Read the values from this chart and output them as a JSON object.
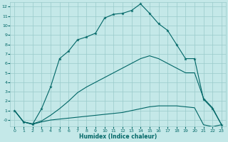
{
  "xlabel": "Humidex (Indice chaleur)",
  "bg_color": "#c4e8e8",
  "grid_color": "#9acaca",
  "line_color": "#006666",
  "xlim": [
    -0.5,
    23.5
  ],
  "ylim": [
    -0.7,
    12.5
  ],
  "xticks": [
    0,
    1,
    2,
    3,
    4,
    5,
    6,
    7,
    8,
    9,
    10,
    11,
    12,
    13,
    14,
    15,
    16,
    17,
    18,
    19,
    20,
    21,
    22,
    23
  ],
  "yticks": [
    0,
    1,
    2,
    3,
    4,
    5,
    6,
    7,
    8,
    9,
    10,
    11,
    12
  ],
  "ytick_labels": [
    "-0",
    "1",
    "2",
    "3",
    "4",
    "5",
    "6",
    "7",
    "8",
    "9",
    "10",
    "11",
    "12"
  ],
  "curve_x": [
    0,
    1,
    2,
    3,
    4,
    5,
    6,
    7,
    8,
    9,
    10,
    11,
    12,
    13,
    14,
    15,
    16,
    17,
    18,
    19,
    20,
    21,
    22,
    23
  ],
  "curve_y": [
    1,
    -0.2,
    -0.45,
    1.2,
    3.5,
    6.5,
    7.3,
    8.5,
    8.8,
    9.2,
    10.8,
    11.2,
    11.3,
    11.6,
    12.3,
    11.3,
    10.2,
    9.5,
    8.0,
    6.5,
    6.5,
    2.2,
    1.2,
    -0.5
  ],
  "line_mid_x": [
    0,
    1,
    2,
    3,
    4,
    5,
    6,
    7,
    8,
    9,
    10,
    11,
    12,
    13,
    14,
    15,
    16,
    17,
    18,
    19,
    20,
    21,
    22,
    23
  ],
  "line_mid_y": [
    1,
    -0.2,
    -0.4,
    -0.1,
    0.5,
    1.2,
    2.0,
    2.9,
    3.5,
    4.0,
    4.5,
    5.0,
    5.5,
    6.0,
    6.5,
    6.8,
    6.5,
    6.0,
    5.5,
    5.0,
    5.0,
    2.3,
    1.3,
    -0.5
  ],
  "line_flat_x": [
    0,
    1,
    2,
    3,
    4,
    5,
    6,
    7,
    8,
    9,
    10,
    11,
    12,
    13,
    14,
    15,
    16,
    17,
    18,
    19,
    20,
    21,
    22,
    23
  ],
  "line_flat_y": [
    1,
    -0.2,
    -0.45,
    -0.2,
    0.0,
    0.1,
    0.2,
    0.3,
    0.4,
    0.5,
    0.6,
    0.7,
    0.8,
    1.0,
    1.2,
    1.4,
    1.5,
    1.5,
    1.5,
    1.4,
    1.3,
    -0.5,
    -0.7,
    -0.5
  ]
}
